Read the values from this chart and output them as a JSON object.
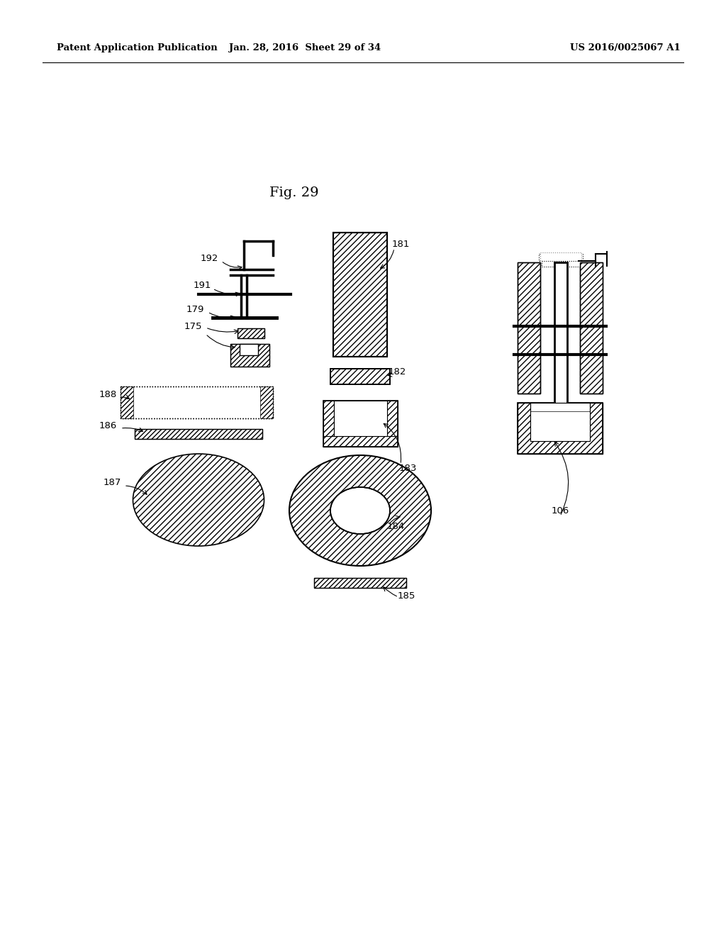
{
  "bg_color": "#ffffff",
  "header_left": "Patent Application Publication",
  "header_mid": "Jan. 28, 2016  Sheet 29 of 34",
  "header_right": "US 2016/0025067 A1",
  "fig_label": "Fig. 29"
}
